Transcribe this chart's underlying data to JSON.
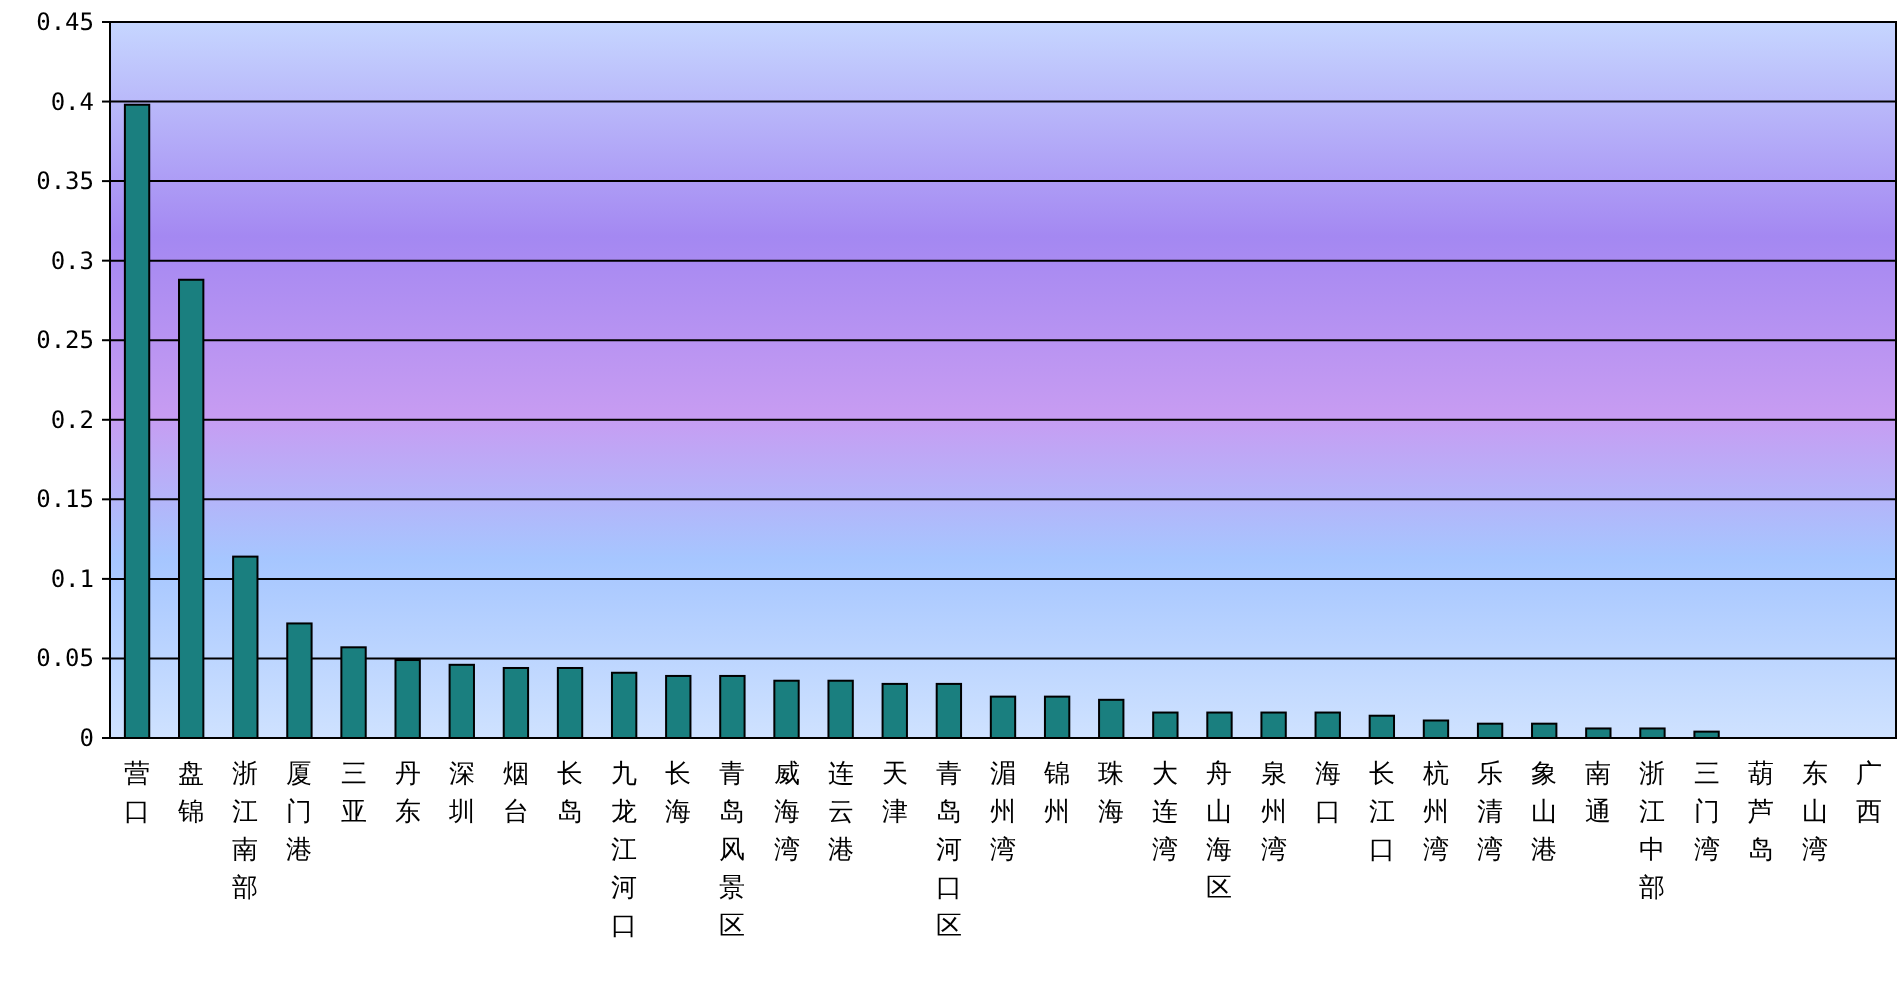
{
  "chart_data": {
    "type": "bar",
    "categories": [
      "营口",
      "盘锦",
      "浙江南部",
      "厦门港",
      "三亚",
      "丹东",
      "深圳",
      "烟台",
      "长岛",
      "九龙江河口",
      "长海",
      "青岛风景区",
      "威海湾",
      "连云港",
      "天津",
      "青岛河口区",
      "湄州湾",
      "锦州",
      "珠海",
      "大连湾",
      "舟山海区",
      "泉州湾",
      "海口",
      "长江口",
      "杭州湾",
      "乐清湾",
      "象山港",
      "南通",
      "浙江中部",
      "三门湾",
      "葫芦岛",
      "东山湾",
      "广西"
    ],
    "values": [
      0.398,
      0.288,
      0.114,
      0.072,
      0.057,
      0.049,
      0.046,
      0.044,
      0.044,
      0.041,
      0.039,
      0.039,
      0.036,
      0.036,
      0.034,
      0.034,
      0.026,
      0.026,
      0.024,
      0.016,
      0.016,
      0.016,
      0.016,
      0.014,
      0.011,
      0.009,
      0.009,
      0.006,
      0.006,
      0.004,
      0,
      0,
      0
    ],
    "color": "#1a7f7f",
    "ylim": [
      0,
      0.45
    ],
    "yticks": [
      0,
      0.05,
      0.1,
      0.15,
      0.2,
      0.25,
      0.3,
      0.35,
      0.4,
      0.45
    ],
    "grid": "y"
  }
}
